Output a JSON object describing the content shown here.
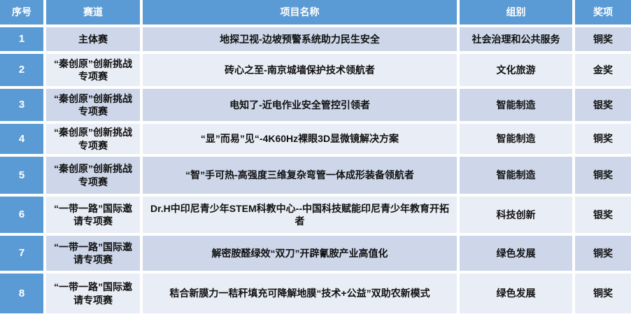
{
  "colors": {
    "header_bg": "#5B9BD5",
    "row_odd_bg": "#CDD7E9",
    "row_even_bg": "#E9EDF5",
    "text_dark": "#111111",
    "text_light": "#FFFFFF",
    "gap_color": "#FFFFFF"
  },
  "table": {
    "columns": [
      "序号",
      "赛道",
      "项目名称",
      "组别",
      "奖项"
    ],
    "rows": [
      {
        "no": "1",
        "track": "主体赛",
        "project": "地探卫视-边坡预警系统助力民生安全",
        "group": "社会治理和公共服务",
        "award": "铜奖"
      },
      {
        "no": "2",
        "track": "“秦创原”创新挑战专项赛",
        "project": "砖心之至-南京城墙保护技术领航者",
        "group": "文化旅游",
        "award": "金奖"
      },
      {
        "no": "3",
        "track": "“秦创原”创新挑战专项赛",
        "project": "电知了-近电作业安全管控引领者",
        "group": "智能制造",
        "award": "银奖"
      },
      {
        "no": "4",
        "track": "“秦创原”创新挑战专项赛",
        "project": "“显”而易”见“-4K60Hz裸眼3D显微镜解决方案",
        "group": "智能制造",
        "award": "铜奖"
      },
      {
        "no": "5",
        "track": "“秦创原”创新挑战专项赛",
        "project": "“智”手可热-高强度三维复杂弯管一体成形装备领航者",
        "group": "智能制造",
        "award": "铜奖"
      },
      {
        "no": "6",
        "track": "“一带一路”国际邀请专项赛",
        "project": "Dr.H中印尼青少年STEM科教中心--中国科技赋能印尼青少年教育开拓者",
        "group": "科技创新",
        "award": "银奖"
      },
      {
        "no": "7",
        "track": "“一带一路”国际邀请专项赛",
        "project": "解密胺醛绿效“双刀”开辟氰胺产业高值化",
        "group": "绿色发展",
        "award": "铜奖"
      },
      {
        "no": "8",
        "track": "“一带一路”国际邀请专项赛",
        "project": "秸合新膜力一秸秆填充可降解地膜“技术+公益”双助农新模式",
        "group": "绿色发展",
        "award": "铜奖"
      }
    ]
  }
}
